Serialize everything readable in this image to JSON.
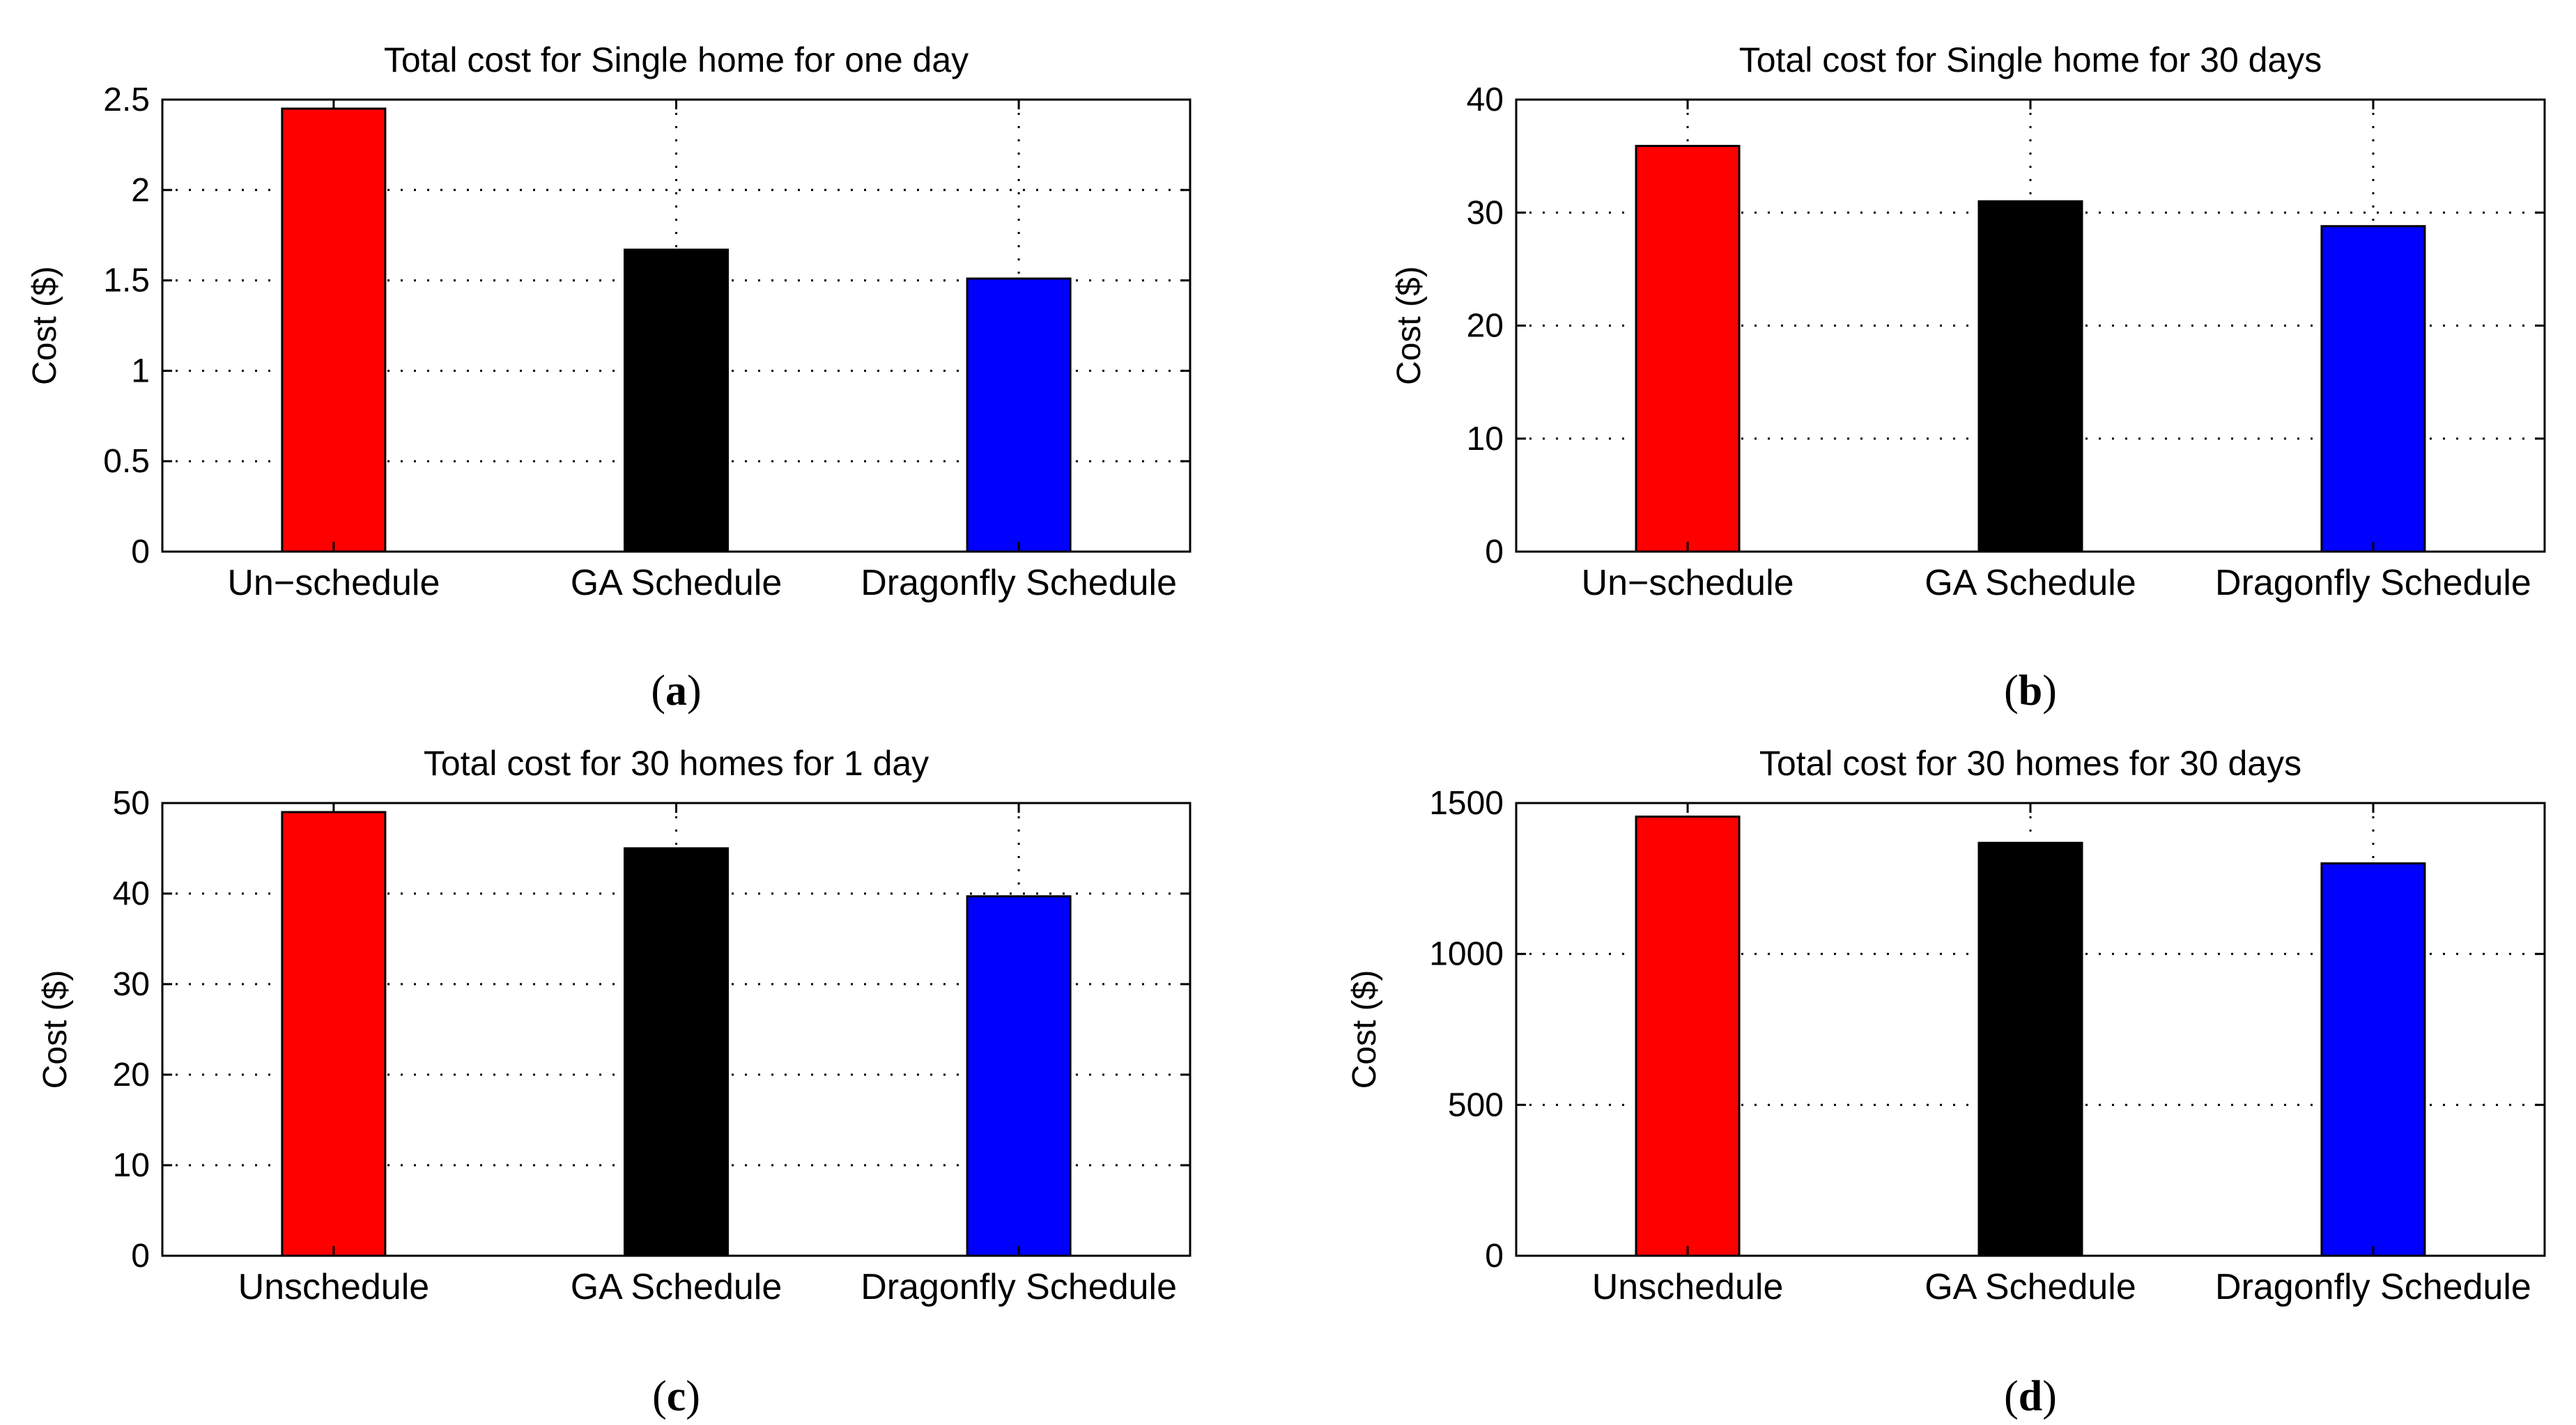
{
  "colors": {
    "red": "#ff0000",
    "black": "#000000",
    "blue": "#0000ff",
    "axis": "#000000",
    "grid": "#000000"
  },
  "chart_data": [
    {
      "type": "bar",
      "title": "Total cost for Single home for one day",
      "ylabel": "Cost ($)",
      "xlabel": "",
      "categories": [
        "Un−schedule",
        "GA Schedule",
        "Dragonfly Schedule"
      ],
      "values": [
        2.45,
        1.67,
        1.51
      ],
      "bar_colors": [
        "#ff0000",
        "#000000",
        "#0000ff"
      ],
      "ylim": [
        0,
        2.5
      ],
      "yticks": [
        0,
        0.5,
        1,
        1.5,
        2,
        2.5
      ],
      "ytick_labels": [
        "0",
        "0.5",
        "1",
        "1.5",
        "2",
        "2.5"
      ],
      "grid": true,
      "caption_open": "(",
      "caption_letter": "a",
      "caption_close": ")"
    },
    {
      "type": "bar",
      "title": "Total cost for Single home for 30 days",
      "ylabel": "Cost ($)",
      "xlabel": "",
      "categories": [
        "Un−schedule",
        "GA Schedule",
        "Dragonfly Schedule"
      ],
      "values": [
        35.9,
        31,
        28.8
      ],
      "bar_colors": [
        "#ff0000",
        "#000000",
        "#0000ff"
      ],
      "ylim": [
        0,
        40
      ],
      "yticks": [
        0,
        10,
        20,
        30,
        40
      ],
      "ytick_labels": [
        "0",
        "10",
        "20",
        "30",
        "40"
      ],
      "grid": true,
      "caption_open": "(",
      "caption_letter": "b",
      "caption_close": ")"
    },
    {
      "type": "bar",
      "title": "Total cost for 30 homes for 1 day",
      "ylabel": "Cost ($)",
      "xlabel": "",
      "categories": [
        "Unschedule",
        "GA Schedule",
        "Dragonfly Schedule"
      ],
      "values": [
        49,
        45,
        39.7
      ],
      "bar_colors": [
        "#ff0000",
        "#000000",
        "#0000ff"
      ],
      "ylim": [
        0,
        50
      ],
      "yticks": [
        0,
        10,
        20,
        30,
        40,
        50
      ],
      "ytick_labels": [
        "0",
        "10",
        "20",
        "30",
        "40",
        "50"
      ],
      "grid": true,
      "caption_open": "(",
      "caption_letter": "c",
      "caption_close": ")"
    },
    {
      "type": "bar",
      "title": "Total cost for 30 homes for 30 days",
      "ylabel": "Cost ($)",
      "xlabel": "",
      "categories": [
        "Unschedule",
        "GA Schedule",
        "Dragonfly Schedule"
      ],
      "values": [
        1455,
        1368,
        1300
      ],
      "bar_colors": [
        "#ff0000",
        "#000000",
        "#0000ff"
      ],
      "ylim": [
        0,
        1500
      ],
      "yticks": [
        0,
        500,
        1000,
        1500
      ],
      "ytick_labels": [
        "0",
        "500",
        "1000",
        "1500"
      ],
      "grid": true,
      "caption_open": "(",
      "caption_letter": "d",
      "caption_close": ")"
    }
  ]
}
